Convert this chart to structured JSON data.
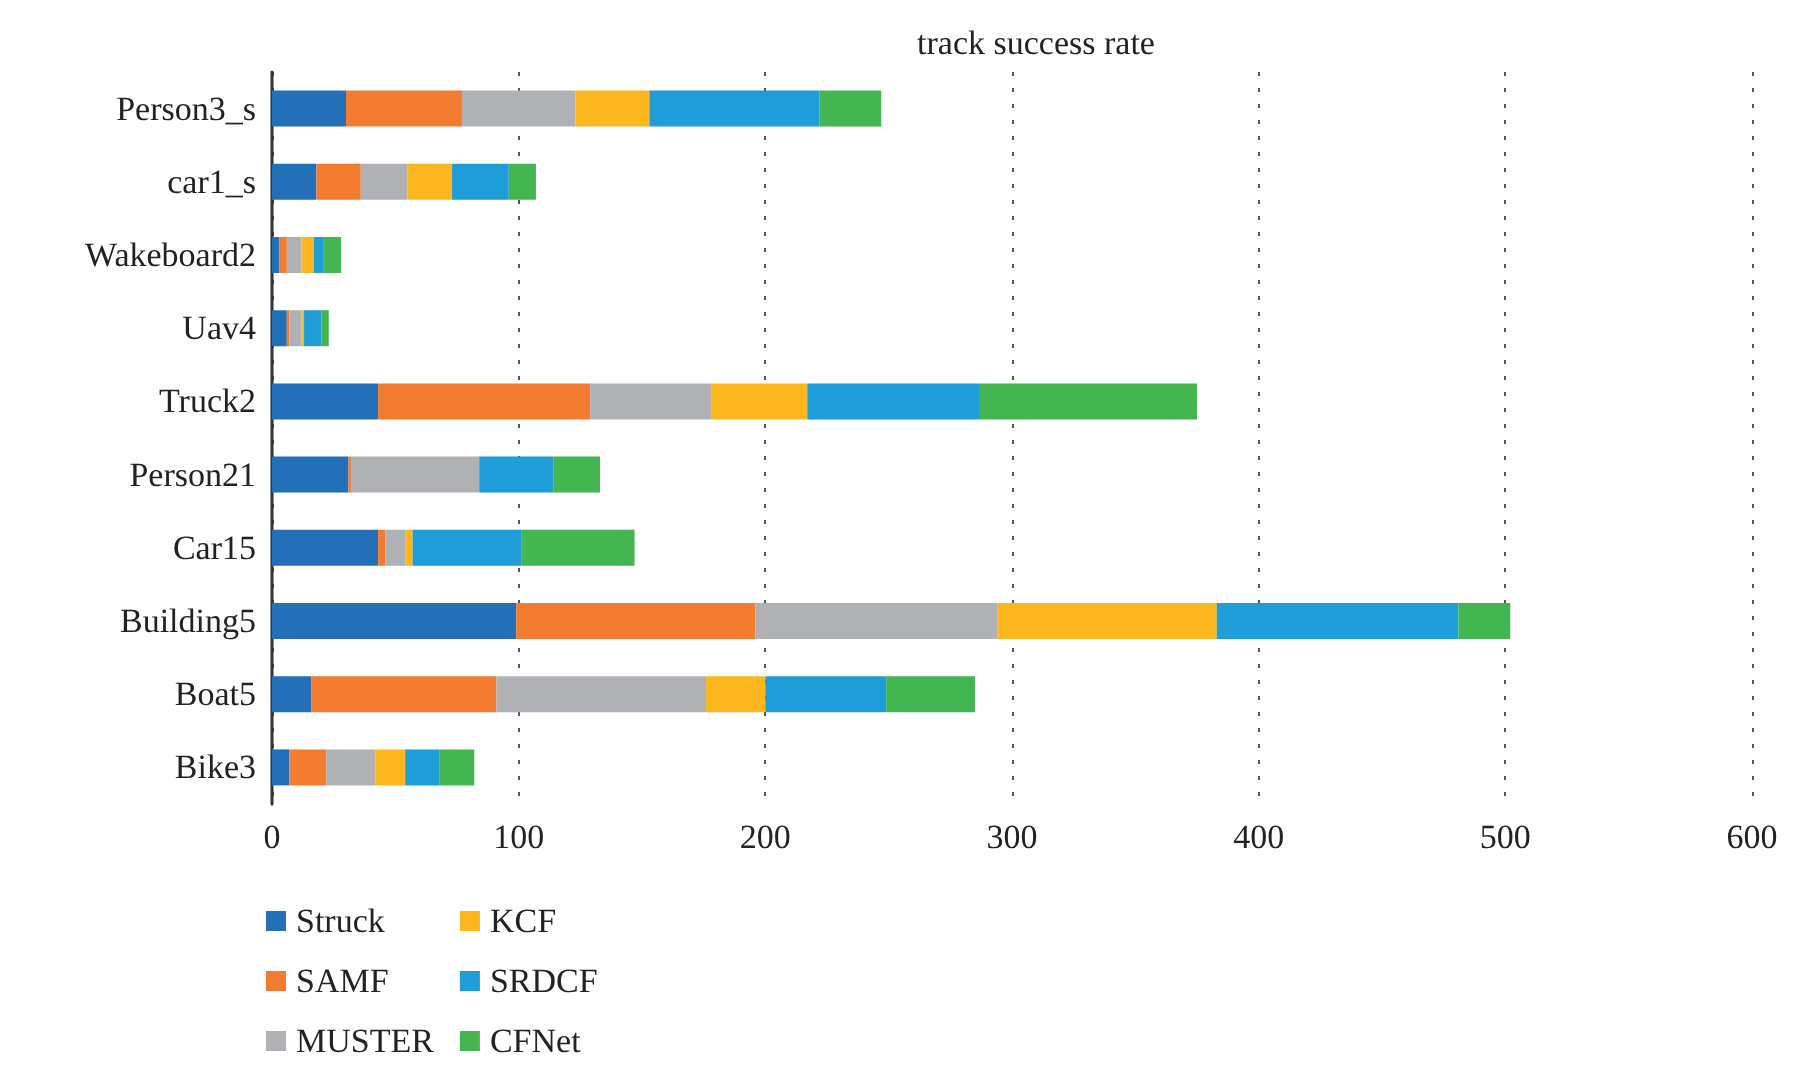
{
  "chart_data": {
    "type": "bar",
    "orientation": "horizontal",
    "stacked": true,
    "title": "track success rate",
    "categories": [
      "Person3_s",
      "car1_s",
      "Wakeboard2",
      "Uav4",
      "Truck2",
      "Person21",
      "Car15",
      "Building5",
      "Boat5",
      "Bike3"
    ],
    "series": [
      {
        "name": "Struck",
        "color": "#2470b8",
        "values": [
          30,
          18,
          3,
          6,
          43,
          31,
          43,
          99,
          16,
          7
        ]
      },
      {
        "name": "SAMF",
        "color": "#f47c30",
        "values": [
          47,
          18,
          3,
          1,
          86,
          1,
          3,
          97,
          75,
          15
        ]
      },
      {
        "name": "MUSTER",
        "color": "#b0b1b4",
        "values": [
          46,
          19,
          6,
          5,
          49,
          52,
          8,
          98,
          85,
          20
        ]
      },
      {
        "name": "KCF",
        "color": "#fdb71e",
        "values": [
          30,
          18,
          5,
          1,
          39,
          0,
          3,
          89,
          24,
          12
        ]
      },
      {
        "name": "SRDCF",
        "color": "#1e9dd8",
        "values": [
          69,
          23,
          4,
          7,
          70,
          30,
          44,
          98,
          49,
          14
        ]
      },
      {
        "name": "CFNet",
        "color": "#43b651",
        "values": [
          25,
          11,
          7,
          3,
          88,
          19,
          46,
          21,
          36,
          14
        ]
      }
    ],
    "xlim": [
      0,
      600
    ],
    "xticks": [
      0,
      100,
      200,
      300,
      400,
      500,
      600
    ],
    "grid": "x",
    "legend": "bottom"
  }
}
